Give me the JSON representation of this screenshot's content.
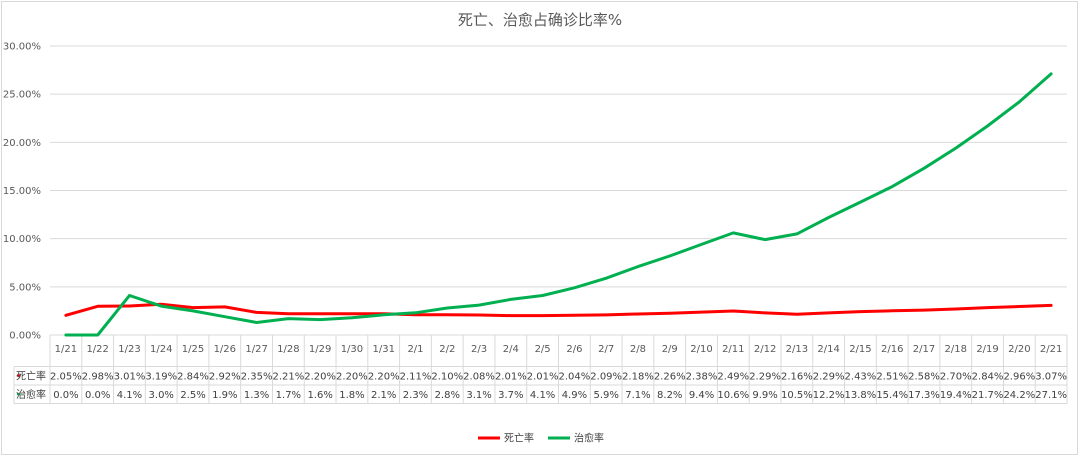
{
  "chart_data": {
    "type": "line",
    "title": "死亡、治愈占确诊比率%",
    "categories": [
      "1/21",
      "1/22",
      "1/23",
      "1/24",
      "1/25",
      "1/26",
      "1/27",
      "1/28",
      "1/29",
      "1/30",
      "1/31",
      "2/1",
      "2/2",
      "2/3",
      "2/4",
      "2/5",
      "2/6",
      "2/7",
      "2/8",
      "2/9",
      "2/10",
      "2/11",
      "2/12",
      "2/13",
      "2/14",
      "2/15",
      "2/16",
      "2/17",
      "2/18",
      "2/19",
      "2/20",
      "2/21"
    ],
    "ylim": [
      0,
      30
    ],
    "yticks": [
      "0.00%",
      "5.00%",
      "10.00%",
      "15.00%",
      "20.00%",
      "25.00%",
      "30.00%"
    ],
    "grid": true,
    "legend": "bottom",
    "series": [
      {
        "name": "死亡率",
        "color": "#ff0000",
        "values": [
          2.05,
          2.98,
          3.01,
          3.19,
          2.84,
          2.92,
          2.35,
          2.21,
          2.2,
          2.2,
          2.2,
          2.11,
          2.1,
          2.08,
          2.01,
          2.01,
          2.04,
          2.09,
          2.18,
          2.26,
          2.38,
          2.49,
          2.29,
          2.16,
          2.29,
          2.43,
          2.51,
          2.58,
          2.7,
          2.84,
          2.96,
          3.07
        ],
        "labels": [
          "2.05%",
          "2.98%",
          "3.01%",
          "3.19%",
          "2.84%",
          "2.92%",
          "2.35%",
          "2.21%",
          "2.20%",
          "2.20%",
          "2.20%",
          "2.11%",
          "2.10%",
          "2.08%",
          "2.01%",
          "2.01%",
          "2.04%",
          "2.09%",
          "2.18%",
          "2.26%",
          "2.38%",
          "2.49%",
          "2.29%",
          "2.16%",
          "2.29%",
          "2.43%",
          "2.51%",
          "2.58%",
          "2.70%",
          "2.84%",
          "2.96%",
          "3.07%"
        ]
      },
      {
        "name": "治愈率",
        "color": "#00b050",
        "values": [
          0.0,
          0.0,
          4.1,
          3.0,
          2.5,
          1.9,
          1.3,
          1.7,
          1.6,
          1.8,
          2.1,
          2.3,
          2.8,
          3.1,
          3.7,
          4.1,
          4.9,
          5.9,
          7.1,
          8.2,
          9.4,
          10.6,
          9.9,
          10.5,
          12.2,
          13.8,
          15.4,
          17.3,
          19.4,
          21.7,
          24.2,
          27.1
        ],
        "labels": [
          "0.0%",
          "0.0%",
          "4.1%",
          "3.0%",
          "2.5%",
          "1.9%",
          "1.3%",
          "1.7%",
          "1.6%",
          "1.8%",
          "2.1%",
          "2.3%",
          "2.8%",
          "3.1%",
          "3.7%",
          "4.1%",
          "4.9%",
          "5.9%",
          "7.1%",
          "8.2%",
          "9.4%",
          "10.6%",
          "9.9%",
          "10.5%",
          "12.2%",
          "13.8%",
          "15.4%",
          "17.3%",
          "19.4%",
          "21.7%",
          "24.2%",
          "27.1%"
        ]
      }
    ]
  }
}
